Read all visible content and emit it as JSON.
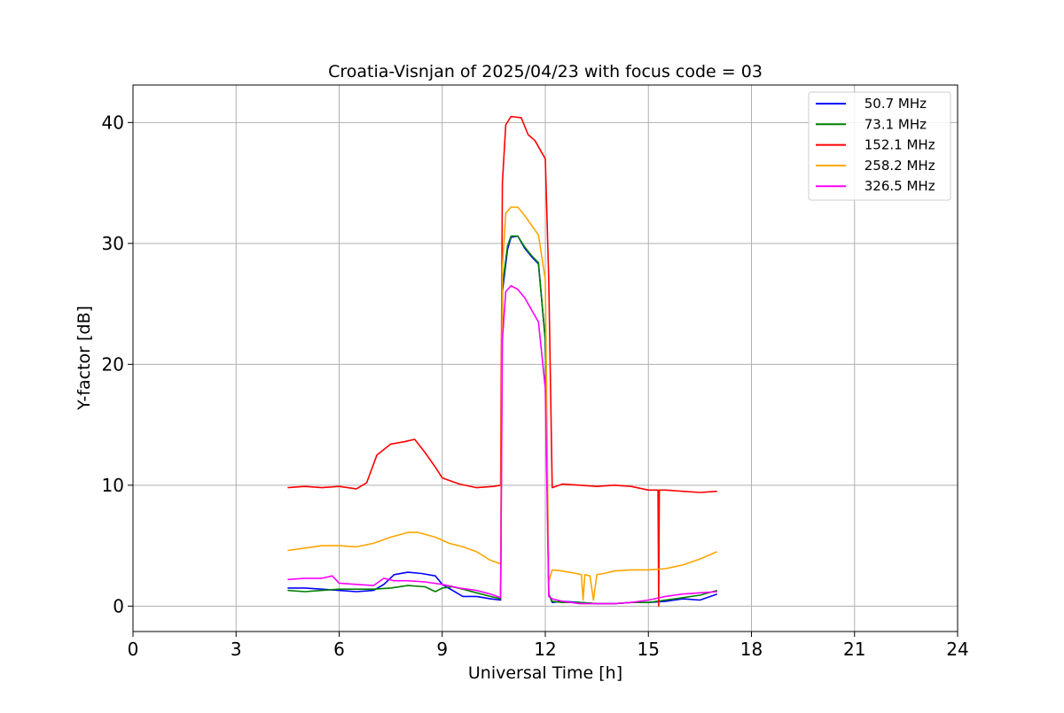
{
  "chart_data": {
    "type": "line",
    "title": "Croatia-Visnjan of 2025/04/23 with focus code = 03",
    "xlabel": "Universal Time [h]",
    "ylabel": "Y-factor [dB]",
    "xlim": [
      0,
      24
    ],
    "ylim": [
      -2.1,
      43.1
    ],
    "xticks": [
      0,
      3,
      6,
      9,
      12,
      15,
      18,
      21,
      24
    ],
    "yticks": [
      0,
      10,
      20,
      30,
      40
    ],
    "grid": true,
    "legend_position": "top-right",
    "series": [
      {
        "name": " 50.7 MHz",
        "color": "#0000ff",
        "x": [
          4.5,
          5.0,
          5.5,
          6.0,
          6.5,
          7.0,
          7.3,
          7.6,
          8.0,
          8.4,
          8.8,
          9.0,
          9.3,
          9.6,
          10.0,
          10.4,
          10.7,
          10.75,
          10.9,
          11.0,
          11.2,
          11.4,
          11.6,
          11.8,
          12.0,
          12.1,
          12.2,
          12.5,
          13.0,
          13.5,
          14.0,
          14.5,
          15.0,
          15.5,
          16.0,
          16.5,
          17.0
        ],
        "y": [
          1.5,
          1.5,
          1.4,
          1.3,
          1.2,
          1.3,
          1.8,
          2.6,
          2.8,
          2.7,
          2.5,
          1.8,
          1.3,
          0.8,
          0.8,
          0.6,
          0.5,
          26.0,
          29.5,
          30.5,
          30.6,
          29.6,
          28.9,
          28.3,
          22.0,
          1.0,
          0.3,
          0.4,
          0.3,
          0.2,
          0.2,
          0.3,
          0.3,
          0.4,
          0.6,
          0.5,
          1.0
        ]
      },
      {
        "name": " 73.1 MHz",
        "color": "#008000",
        "x": [
          4.5,
          5.0,
          5.5,
          6.0,
          6.5,
          7.0,
          7.5,
          8.0,
          8.5,
          8.8,
          9.0,
          9.3,
          9.6,
          10.0,
          10.4,
          10.7,
          10.75,
          10.9,
          11.0,
          11.2,
          11.4,
          11.6,
          11.8,
          12.0,
          12.1,
          12.2,
          12.5,
          13.0,
          13.5,
          14.0,
          14.5,
          15.0,
          15.5,
          16.0,
          16.5,
          17.0
        ],
        "y": [
          1.3,
          1.2,
          1.3,
          1.4,
          1.4,
          1.4,
          1.5,
          1.7,
          1.6,
          1.2,
          1.5,
          1.6,
          1.4,
          1.1,
          0.8,
          0.6,
          26.5,
          29.8,
          30.6,
          30.6,
          29.7,
          29.0,
          28.4,
          22.0,
          1.0,
          0.4,
          0.3,
          0.3,
          0.2,
          0.2,
          0.3,
          0.3,
          0.5,
          0.7,
          0.9,
          1.3
        ]
      },
      {
        "name": " 152.1 MHz",
        "color": "#ff0000",
        "x": [
          4.5,
          5.0,
          5.5,
          6.0,
          6.5,
          6.8,
          7.1,
          7.5,
          7.9,
          8.2,
          8.5,
          8.8,
          9.0,
          9.5,
          10.0,
          10.5,
          10.7,
          10.75,
          10.85,
          11.0,
          11.3,
          11.5,
          11.7,
          12.0,
          12.1,
          12.2,
          12.5,
          13.0,
          13.5,
          14.0,
          14.5,
          15.0,
          15.28,
          15.3,
          15.32,
          15.5,
          16.0,
          16.5,
          17.0
        ],
        "y": [
          9.8,
          9.9,
          9.8,
          9.9,
          9.7,
          10.2,
          12.5,
          13.4,
          13.6,
          13.8,
          12.7,
          11.5,
          10.6,
          10.1,
          9.8,
          9.9,
          10.0,
          35.0,
          39.8,
          40.5,
          40.4,
          39.0,
          38.5,
          37.0,
          27.0,
          9.8,
          10.1,
          10.0,
          9.9,
          10.0,
          9.9,
          9.6,
          9.6,
          0.0,
          9.6,
          9.6,
          9.5,
          9.4,
          9.5
        ]
      },
      {
        "name": " 258.2 MHz",
        "color": "#ffa500",
        "x": [
          4.5,
          5.0,
          5.5,
          6.0,
          6.5,
          7.0,
          7.5,
          8.0,
          8.3,
          8.8,
          9.2,
          9.6,
          10.0,
          10.4,
          10.7,
          10.75,
          10.85,
          11.0,
          11.2,
          11.4,
          11.6,
          11.8,
          12.0,
          12.1,
          12.2,
          12.5,
          12.9,
          13.05,
          13.1,
          13.15,
          13.3,
          13.4,
          13.5,
          13.7,
          14.0,
          14.5,
          15.0,
          15.5,
          16.0,
          16.5,
          17.0
        ],
        "y": [
          4.6,
          4.8,
          5.0,
          5.0,
          4.9,
          5.2,
          5.7,
          6.1,
          6.1,
          5.7,
          5.2,
          4.9,
          4.5,
          3.8,
          3.5,
          28.0,
          32.5,
          33.0,
          33.0,
          32.3,
          31.5,
          30.7,
          27.0,
          2.0,
          3.0,
          2.9,
          2.7,
          2.6,
          0.5,
          2.6,
          2.5,
          0.5,
          2.6,
          2.7,
          2.9,
          3.0,
          3.0,
          3.1,
          3.4,
          3.9,
          4.5
        ]
      },
      {
        "name": " 326.5 MHz",
        "color": "#ff00ff",
        "x": [
          4.5,
          5.0,
          5.5,
          5.8,
          6.0,
          6.5,
          7.0,
          7.3,
          7.6,
          8.0,
          8.5,
          9.0,
          9.5,
          10.0,
          10.4,
          10.7,
          10.75,
          10.85,
          11.0,
          11.2,
          11.4,
          11.6,
          11.8,
          12.0,
          12.1,
          12.2,
          12.5,
          13.0,
          13.5,
          14.0,
          14.5,
          15.0,
          15.5,
          16.0,
          16.5,
          17.0
        ],
        "y": [
          2.2,
          2.3,
          2.3,
          2.5,
          1.9,
          1.8,
          1.7,
          2.3,
          2.1,
          2.1,
          2.0,
          1.8,
          1.5,
          1.3,
          1.0,
          0.7,
          22.0,
          26.0,
          26.5,
          26.2,
          25.5,
          24.5,
          23.5,
          18.0,
          0.8,
          0.6,
          0.4,
          0.2,
          0.2,
          0.2,
          0.3,
          0.5,
          0.8,
          1.0,
          1.1,
          1.2
        ]
      }
    ]
  }
}
